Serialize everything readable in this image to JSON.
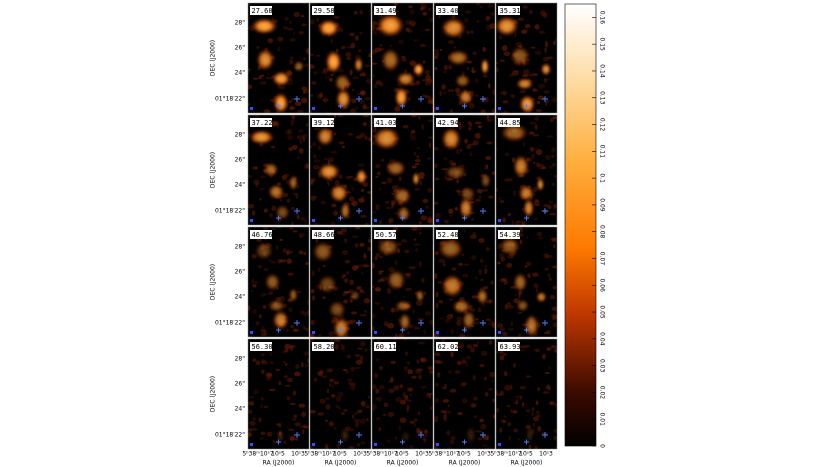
{
  "figure": {
    "panels": [
      "27.68",
      "29.58",
      "31.49",
      "33.40",
      "35.31",
      "37.22",
      "39.12",
      "41.03",
      "42.94",
      "44.85",
      "46.76",
      "48.66",
      "50.57",
      "52.48",
      "54.39",
      "56.30",
      "58.20",
      "60.11",
      "62.02",
      "63.93"
    ],
    "y_axis_label": "DEC (J2000)",
    "y_ticks": [
      "28\"",
      "26\"",
      "24\"",
      "01°18′22\""
    ],
    "x_axis_label": "RA (J2000)",
    "x_ticks": [
      "5ʰ38ᵐ10ˢ7",
      "10ˢ5",
      "10ˢ3"
    ],
    "colorbar": {
      "ylim": [
        0,
        0.165
      ],
      "ticks": [
        0,
        0.01,
        0.02,
        0.03,
        0.04,
        0.05,
        0.06,
        0.07,
        0.08,
        0.09,
        0.1,
        0.11,
        0.12,
        0.13,
        0.14,
        0.15,
        0.16
      ]
    }
  }
}
